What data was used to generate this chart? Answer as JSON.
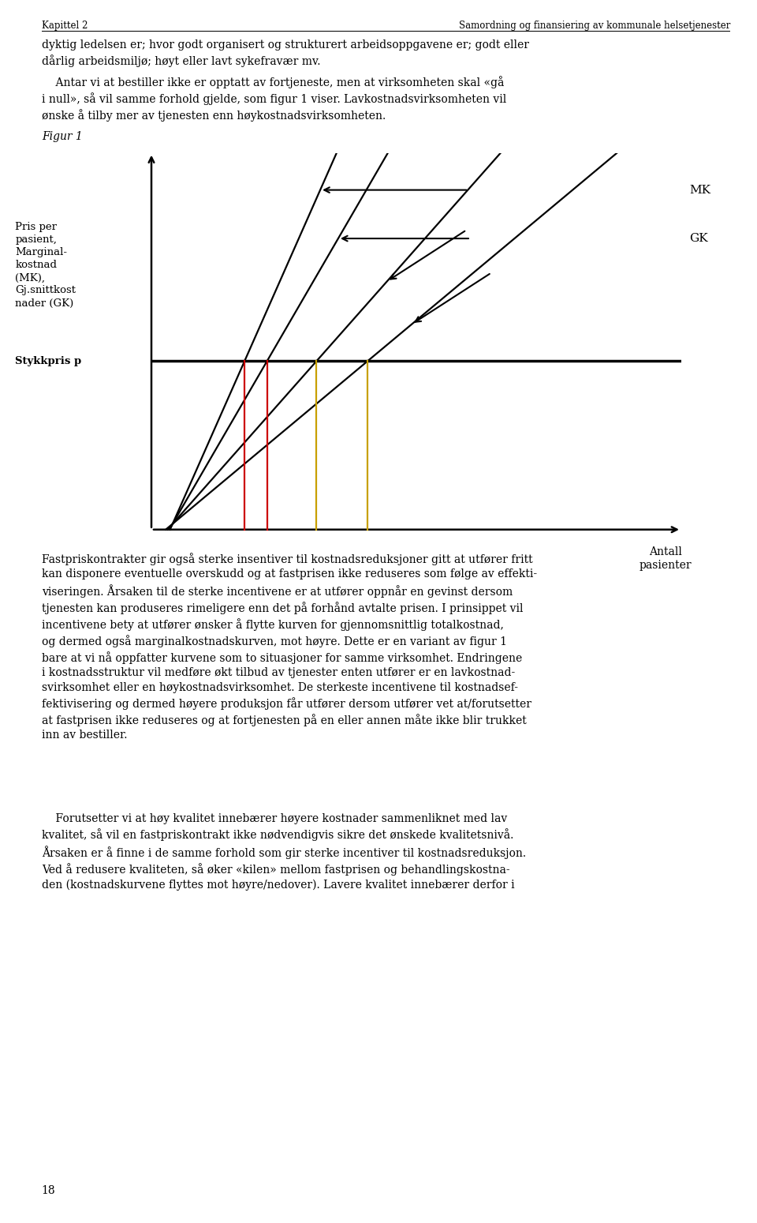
{
  "header_left": "Kapittel 2",
  "header_right": "Samordning og finansiering av kommunale helsetjenester",
  "body1": "dyktig ledelsen er; hvor godt organisert og strukturert arbeidsoppgavene er; godt eller\ndårlig arbeidsmiljø; høyt eller lavt sykefravær mv.",
  "body2": "    Antar vi at bestiller ikke er opptatt av fortjeneste, men at virksomheten skal «gå\ni null», så vil samme forhold gjelde, som figur 1 viser. Lavkostnadsvirksomheten vil\nønske å tilby mer av tjenesten enn høykostnadsvirksomheten.",
  "figur_label": "Figur 1",
  "ylabel_top": "Pris per\npasient,\nMarginal-\nkostnad\n(MK),\nGj.snittkost\nnader (GK)",
  "stykkpris_label": "Stykkpris p",
  "mk_label": "MK",
  "gk_label": "GK",
  "xlabel_label": "Antall\npasienter",
  "bottom_text1": "Fastpriskontrakter gir også sterke insentiver til kostnadsreduksjoner gitt at utfører fritt\nkan disponere eventuelle overskudd og at fastprisen ikke reduseres som følge av effekti-\nviseringen. Årsaken til de sterke incentivene er at utfører oppnår en gevinst dersom\ntjenesten kan produseres rimeligere enn det på forhånd avtalte prisen. I prinsippet vil\nincentivene bety at utfører ønsker å flytte kurven for gjennomsnittlig totalkostnad,\nog dermed også marginalkostnadskurven, mot høyre. Dette er en variant av figur 1\nbare at vi nå oppfatter kurvene som to situasjoner for samme virksomhet. Endringene\ni kostnadsstruktur vil medføre økt tilbud av tjenester enten utfører er en lavkostnad-\nsvirksomhet eller en høykostnadsvirksomhet. De sterkeste incentivene til kostnadsef-\nfektivisering og dermed høyere produksjon får utfører dersom utfører vet at/forutsetter\nat fastprisen ikke reduseres og at fortjenesten på en eller annen måte ikke blir trukket\ninn av bestiller.",
  "bottom_text2": "    Forutsetter vi at høy kvalitet innebærer høyere kostnader sammenliknet med lav\nkvalitet, så vil en fastpriskontrakt ikke nødvendigvis sikre det ønskede kvalitetsnivå.\nÅrsaken er å finne i de samme forhold som gir sterke incentiver til kostnadsreduksjon.\nVed å redusere kvaliteten, så øker «kilen» mellom fastprisen og behandlingskostna-\nden (kostnadskurvene flyttes mot høyre/nedover). Lavere kvalitet innebærer derfor i",
  "page_number": "18",
  "background_color": "#ffffff",
  "red_color": "#cc0000",
  "gold_color": "#c8a000",
  "fig_width": 9.6,
  "fig_height": 15.49,
  "dpi": 100
}
